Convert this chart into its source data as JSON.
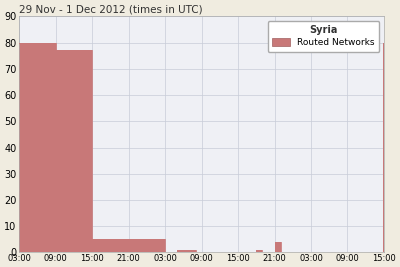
{
  "title": "29 Nov - 1 Dec 2012 (times in UTC)",
  "ylim": [
    0,
    90
  ],
  "yticks": [
    0,
    10,
    20,
    30,
    40,
    50,
    60,
    70,
    80,
    90
  ],
  "bar_color": "#c87878",
  "background_color": "#f0ece0",
  "plot_bg_color": "#eff0f5",
  "grid_color": "#c8ccd8",
  "legend_label_title": "Syria",
  "legend_label_item": "Routed Networks",
  "x_tick_labels": [
    "03:00",
    "09:00",
    "15:00",
    "21:00",
    "03:00",
    "09:00",
    "15:00",
    "21:00",
    "03:00",
    "09:00",
    "15:00"
  ],
  "xlim": [
    0,
    60
  ],
  "series_x": [
    0,
    6,
    6,
    12,
    12,
    24,
    24,
    26,
    26,
    29,
    29,
    29.5,
    29.5,
    39,
    39,
    40,
    40,
    42,
    42,
    43,
    43,
    59.8,
    59.8,
    60
  ],
  "series_y": [
    80,
    80,
    77,
    77,
    5,
    5,
    0,
    0,
    1,
    1,
    0,
    0,
    0,
    0,
    1,
    1,
    0,
    0,
    4,
    4,
    0,
    0,
    80,
    80
  ]
}
